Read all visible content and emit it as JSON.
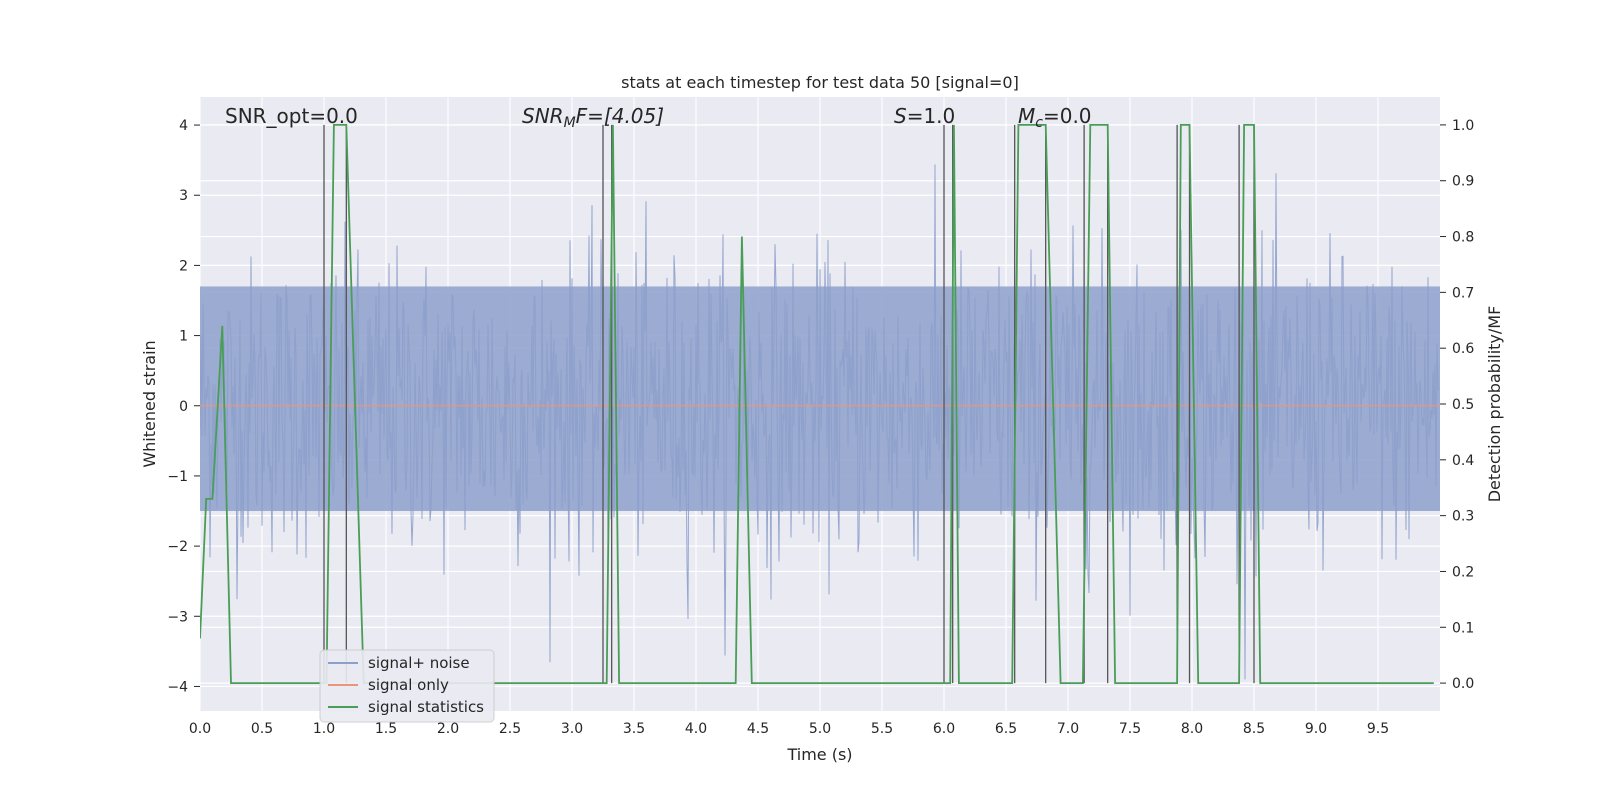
{
  "chart_data": {
    "type": "line",
    "title": "stats at each timestep for test data 50 [signal=0]",
    "xlabel": "Time (s)",
    "ylabel_left": "Whitened strain",
    "ylabel_right": "Detection probability/MF",
    "xlim": [
      0,
      10
    ],
    "ylim_left": [
      -4.35,
      4.4
    ],
    "ylim_right": [
      -0.05,
      1.05
    ],
    "x_ticks": [
      0.0,
      0.5,
      1.0,
      1.5,
      2.0,
      2.5,
      3.0,
      3.5,
      4.0,
      4.5,
      5.0,
      5.5,
      6.0,
      6.5,
      7.0,
      7.5,
      8.0,
      8.5,
      9.0,
      9.5
    ],
    "x_tick_labels": [
      "0.0",
      "0.5",
      "1.0",
      "1.5",
      "2.0",
      "2.5",
      "3.0",
      "3.5",
      "4.0",
      "4.5",
      "5.0",
      "5.5",
      "6.0",
      "6.5",
      "7.0",
      "7.5",
      "8.0",
      "8.5",
      "9.0",
      "9.5"
    ],
    "y_left_ticks": [
      4,
      3,
      2,
      1,
      0,
      -1,
      -2,
      -3,
      -4
    ],
    "y_left_tick_labels": [
      "4",
      "3",
      "2",
      "1",
      "0",
      "−1",
      "−2",
      "−3",
      "−4"
    ],
    "y_right_ticks": [
      1.0,
      0.9,
      0.8,
      0.7,
      0.6,
      0.5,
      0.4,
      0.3,
      0.2,
      0.1,
      0.0
    ],
    "y_right_tick_labels": [
      "1.0",
      "0.9",
      "0.8",
      "0.7",
      "0.6",
      "0.5",
      "0.4",
      "0.3",
      "0.2",
      "0.1",
      "0.0"
    ],
    "annotations": {
      "snr_opt": "SNR_opt=0.0",
      "snr_mf_base": "SNR",
      "snr_mf_sub": "M",
      "snr_mf_rest": "F=[4.05]",
      "s_main": "S",
      "s_rest": "=1.0",
      "mc_main": "M",
      "mc_sub": "c",
      "mc_rest": "=0.0"
    },
    "legend": {
      "placement": "lower-left",
      "entries": [
        "signal+ noise",
        "signal only",
        "signal statistics"
      ]
    },
    "colors": {
      "noise": "#8da0cb",
      "signal": "#e8957a",
      "stats": "#4a9d57",
      "vlines": "#555555",
      "background": "#eaeaf2",
      "grid": "#ffffff"
    },
    "noise_envelope": {
      "description_free": true,
      "dense_band_upper": 1.7,
      "dense_band_lower": -1.5,
      "peak_max": 3.8,
      "peak_min": -3.9
    },
    "signal_only": {
      "x": [
        0,
        10
      ],
      "y": [
        0,
        0
      ]
    },
    "vertical_lines_x": [
      1.0,
      1.18,
      3.25,
      3.32,
      6.0,
      6.07,
      6.57,
      6.82,
      7.13,
      7.32,
      7.88,
      7.98,
      8.38,
      8.5
    ],
    "stats_series": {
      "x": [
        0.0,
        0.05,
        0.1,
        0.18,
        0.25,
        0.3,
        0.96,
        1.02,
        1.08,
        1.18,
        1.32,
        1.38,
        3.2,
        3.28,
        3.33,
        3.38,
        3.42,
        4.32,
        4.37,
        4.45,
        4.5,
        6.0,
        6.05,
        6.08,
        6.12,
        6.55,
        6.6,
        6.82,
        6.94,
        7.12,
        7.18,
        7.32,
        7.38,
        7.88,
        7.91,
        7.98,
        8.05,
        8.12,
        8.38,
        8.42,
        8.5,
        8.55,
        9.95
      ],
      "y": [
        0.08,
        0.33,
        0.33,
        0.64,
        0.0,
        0.0,
        0.0,
        0.0,
        1.0,
        1.0,
        0.0,
        0.0,
        0.0,
        0.0,
        1.0,
        0.0,
        0.0,
        0.0,
        0.8,
        0.0,
        0.0,
        0.0,
        0.0,
        1.0,
        0.0,
        0.0,
        1.0,
        1.0,
        0.0,
        0.0,
        1.0,
        1.0,
        0.0,
        0.0,
        1.0,
        1.0,
        0.0,
        0.0,
        0.0,
        1.0,
        1.0,
        0.0,
        0.0
      ]
    }
  }
}
